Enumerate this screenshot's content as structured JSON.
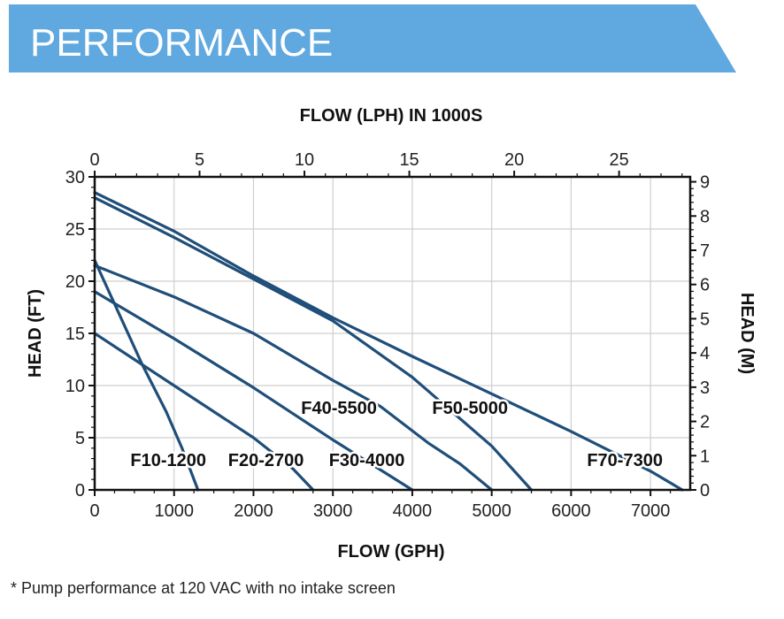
{
  "header": {
    "title": "PERFORMANCE",
    "color": "#5fa8e0"
  },
  "footnote": "* Pump performance at 120 VAC with no intake screen",
  "chart_data": {
    "type": "line",
    "title": "",
    "xlabel": "FLOW (GPH)",
    "ylabel": "HEAD (FT)",
    "x2label": "FLOW (LPH) IN 1000S",
    "y2label": "HEAD (M)",
    "xlim": [
      0,
      7500
    ],
    "ylim": [
      0,
      30
    ],
    "x_ticks": [
      0,
      1000,
      2000,
      3000,
      4000,
      5000,
      6000,
      7000
    ],
    "x_tick_labels": [
      "0",
      "1000",
      "2000",
      "3000",
      "4000",
      "5000",
      "6000",
      "7000"
    ],
    "y_ticks": [
      0,
      5,
      10,
      15,
      20,
      25,
      30
    ],
    "y_tick_labels": [
      "0",
      "5",
      "10",
      "15",
      "20",
      "25",
      "30"
    ],
    "x2_ticks": [
      0,
      5,
      10,
      15,
      20,
      25
    ],
    "x2_tick_labels": [
      "0",
      "5",
      "10",
      "15",
      "20",
      "25"
    ],
    "y2_ticks": [
      0,
      1,
      2,
      3,
      4,
      5,
      6,
      7,
      8,
      9
    ],
    "y2_tick_labels": [
      "0",
      "1",
      "2",
      "3",
      "4",
      "5",
      "6",
      "7",
      "8",
      "9"
    ],
    "grid": true,
    "line_color": "#1f4e79",
    "series": [
      {
        "name": "F10-1200",
        "x": [
          0,
          300,
          600,
          900,
          1100,
          1300
        ],
        "y": [
          22,
          17,
          12,
          7.5,
          4,
          0
        ]
      },
      {
        "name": "F20-2700",
        "x": [
          0,
          1000,
          2000,
          2500,
          2750
        ],
        "y": [
          15,
          10,
          5,
          2,
          0
        ]
      },
      {
        "name": "F30-4000",
        "x": [
          0,
          1000,
          2000,
          3000,
          4000
        ],
        "y": [
          19,
          14.5,
          9.8,
          4.8,
          0
        ]
      },
      {
        "name": "F40-5500",
        "x": [
          0,
          1000,
          2000,
          3000,
          4000,
          5000,
          5500
        ],
        "y": [
          28,
          24.2,
          20.2,
          16.2,
          10.8,
          4.2,
          0
        ]
      },
      {
        "name": "F50-5000",
        "x": [
          0,
          1000,
          2000,
          3000,
          3600,
          4200,
          4600,
          5000
        ],
        "y": [
          21.5,
          18.5,
          15,
          10.5,
          8,
          4.5,
          2.5,
          0
        ]
      },
      {
        "name": "F70-7300",
        "x": [
          0,
          1000,
          2000,
          3000,
          4000,
          5000,
          6000,
          7000,
          7400
        ],
        "y": [
          28.5,
          24.8,
          20.5,
          16.5,
          12.8,
          9.2,
          5.6,
          1.8,
          0
        ]
      }
    ]
  }
}
